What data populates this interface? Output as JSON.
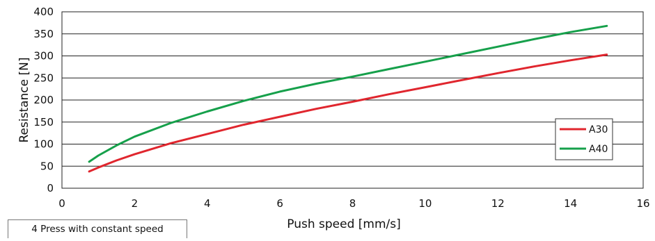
{
  "caption": "4 Press with constant speed",
  "chart_data": {
    "type": "line",
    "xlabel": "Push speed [mm/s]",
    "ylabel": "Resistance [N]",
    "xlim": [
      0,
      16
    ],
    "ylim": [
      0,
      400
    ],
    "xticks": [
      "0",
      "2",
      "4",
      "6",
      "8",
      "10",
      "12",
      "14",
      "16"
    ],
    "yticks": [
      "0",
      "50",
      "100",
      "150",
      "200",
      "250",
      "300",
      "350",
      "400"
    ],
    "grid": "horizontal",
    "legend_position": "right",
    "x": [
      0.75,
      1,
      1.5,
      2,
      3,
      4,
      5,
      6,
      7,
      8,
      9,
      10,
      11,
      12,
      13,
      14,
      15
    ],
    "series": [
      {
        "name": "A30",
        "color": "#e0262e",
        "values": [
          38,
          47,
          63,
          77,
          102,
          123,
          144,
          162,
          180,
          196,
          213,
          229,
          245,
          261,
          276,
          290,
          303
        ]
      },
      {
        "name": "A40",
        "color": "#16a04b",
        "values": [
          60,
          74,
          97,
          117,
          148,
          174,
          198,
          219,
          237,
          253,
          270,
          287,
          304,
          321,
          338,
          354,
          368
        ]
      }
    ]
  }
}
